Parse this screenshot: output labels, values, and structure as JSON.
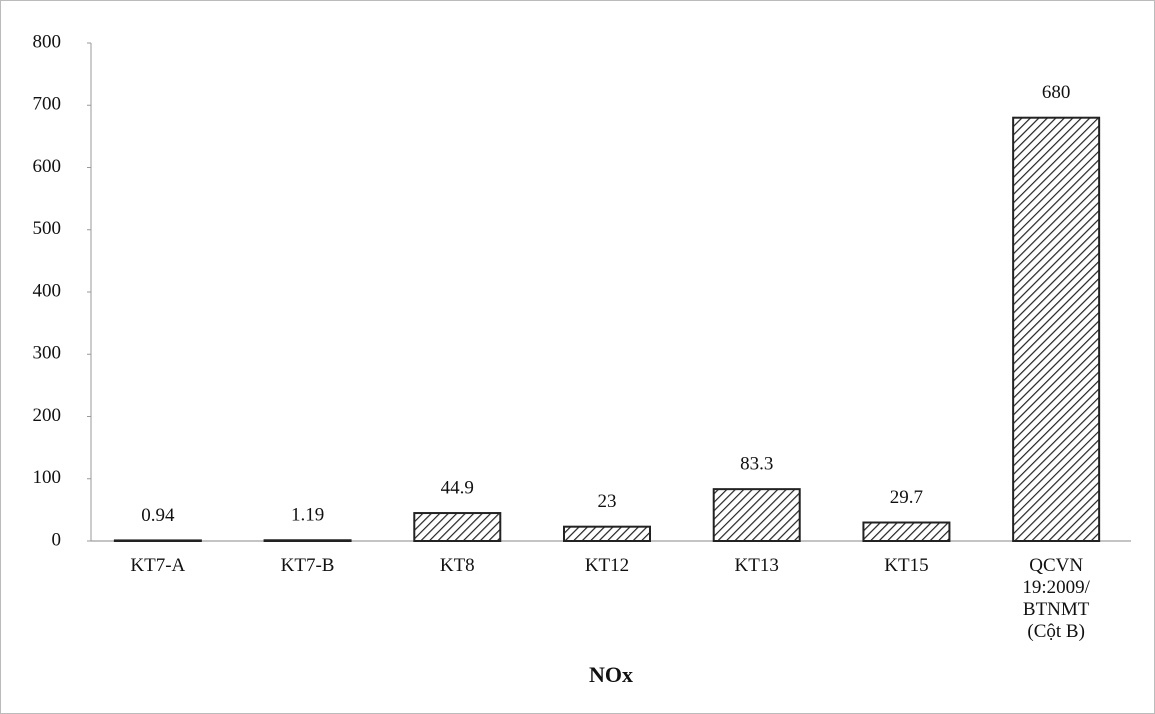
{
  "chart_data": {
    "type": "bar",
    "x_label": "NOx",
    "categories": [
      "KT7-A",
      "KT7-B",
      "KT8",
      "KT12",
      "KT13",
      "KT15",
      "QCVN 19:2009/ BTNMT (Cột B)"
    ],
    "values": [
      0.94,
      1.19,
      44.9,
      23,
      83.3,
      29.7,
      680
    ],
    "color": "#222222",
    "ylim": [
      0,
      800
    ],
    "yticks": [
      0,
      100,
      200,
      300,
      400,
      500,
      600,
      700,
      800
    ],
    "grid": false
  }
}
